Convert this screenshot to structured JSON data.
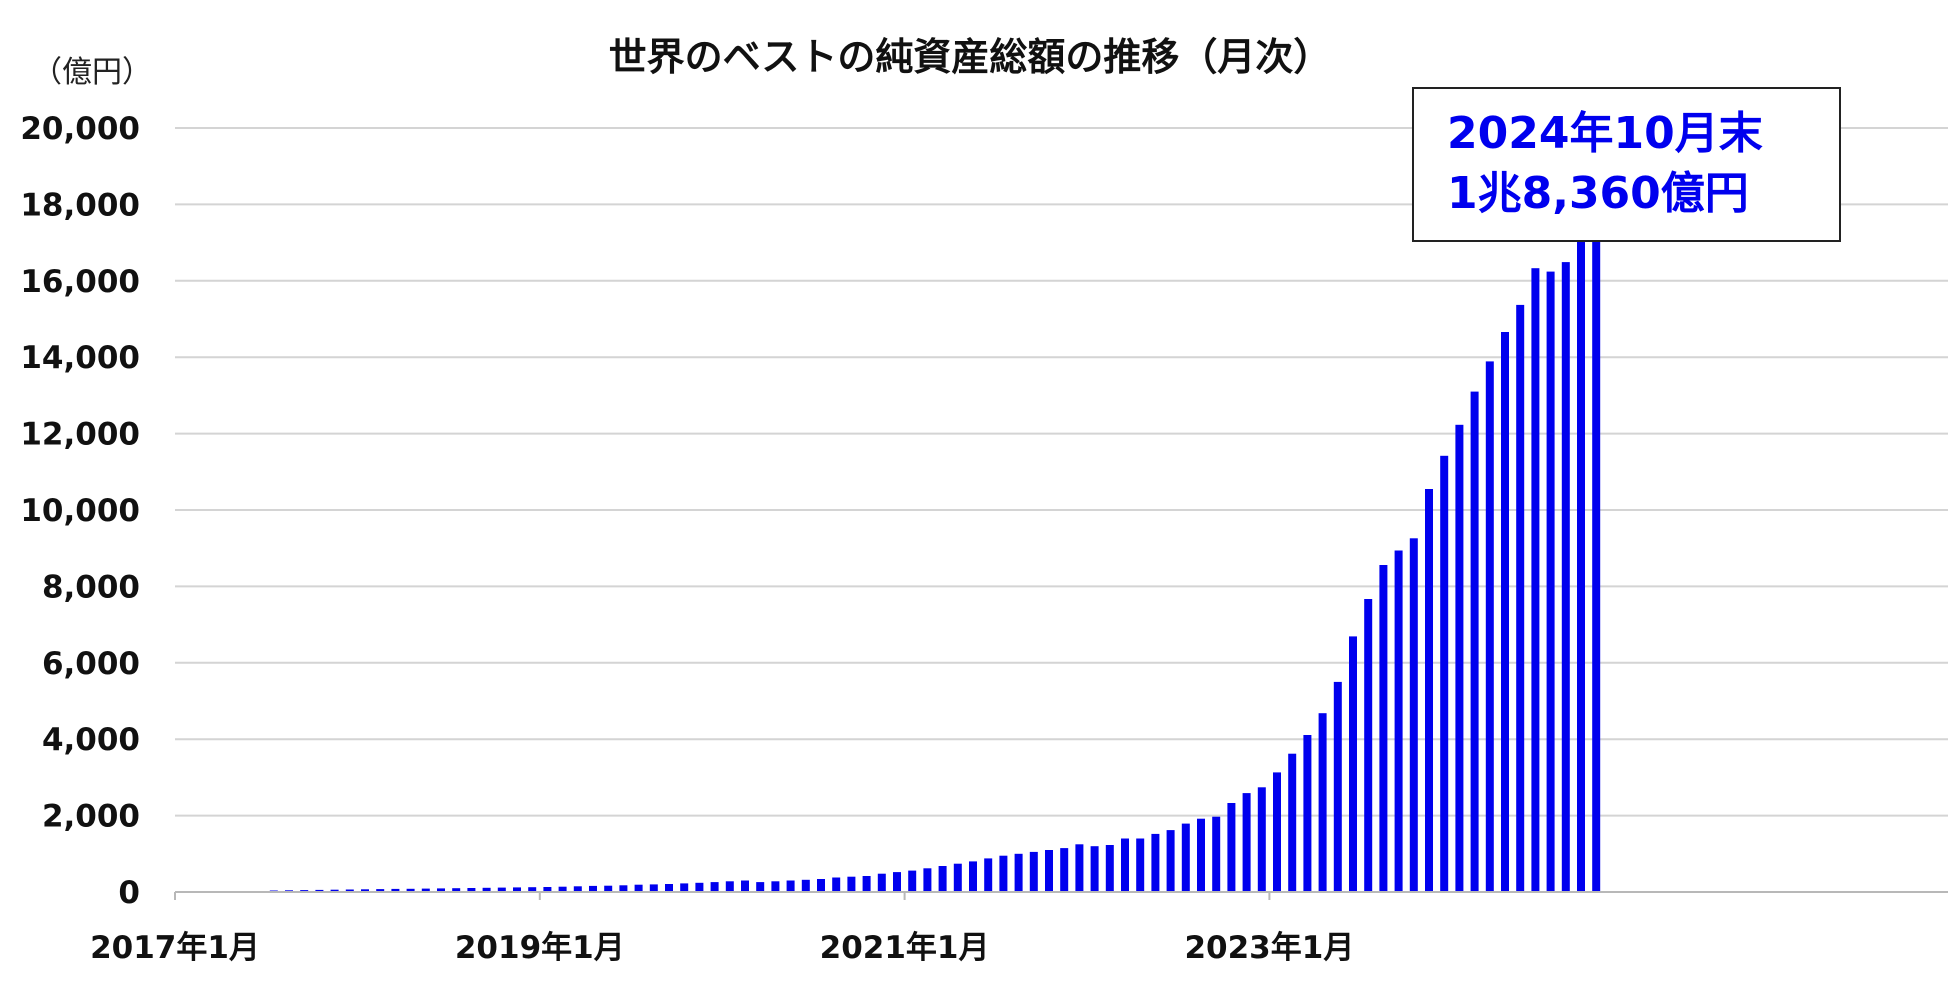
{
  "chart_data": {
    "type": "bar",
    "title": "世界のベストの純資産総額の推移（月次）",
    "ylabel": "（億円）",
    "xlabel": "",
    "ylim": [
      0,
      20000
    ],
    "yticks": [
      "0",
      "2,000",
      "4,000",
      "6,000",
      "8,000",
      "10,000",
      "12,000",
      "14,000",
      "16,000",
      "18,000",
      "20,000"
    ],
    "ytick_values": [
      0,
      2000,
      4000,
      6000,
      8000,
      10000,
      12000,
      14000,
      16000,
      18000,
      20000
    ],
    "x_start": "2017-01",
    "xticks": [
      {
        "label": "2017年1月",
        "month": "2017-01"
      },
      {
        "label": "2019年1月",
        "month": "2019-01"
      },
      {
        "label": "2021年1月",
        "month": "2021-01"
      },
      {
        "label": "2023年1月",
        "month": "2023-01"
      }
    ],
    "grid": true,
    "annotation": {
      "line1": "2024年10月末",
      "line2": "1兆8,360億円"
    },
    "colors": {
      "bar": "#0000ee",
      "annotation_text": "#0000ee"
    },
    "series": [
      {
        "values": [
          {
            "x": "2017-07",
            "y": 40
          },
          {
            "x": "2017-08",
            "y": 45
          },
          {
            "x": "2017-09",
            "y": 50
          },
          {
            "x": "2017-10",
            "y": 55
          },
          {
            "x": "2017-11",
            "y": 60
          },
          {
            "x": "2017-12",
            "y": 65
          },
          {
            "x": "2018-01",
            "y": 70
          },
          {
            "x": "2018-02",
            "y": 75
          },
          {
            "x": "2018-03",
            "y": 80
          },
          {
            "x": "2018-04",
            "y": 85
          },
          {
            "x": "2018-05",
            "y": 90
          },
          {
            "x": "2018-06",
            "y": 95
          },
          {
            "x": "2018-07",
            "y": 100
          },
          {
            "x": "2018-08",
            "y": 105
          },
          {
            "x": "2018-09",
            "y": 110
          },
          {
            "x": "2018-10",
            "y": 115
          },
          {
            "x": "2018-11",
            "y": 120
          },
          {
            "x": "2018-12",
            "y": 125
          },
          {
            "x": "2019-01",
            "y": 130
          },
          {
            "x": "2019-02",
            "y": 140
          },
          {
            "x": "2019-03",
            "y": 150
          },
          {
            "x": "2019-04",
            "y": 160
          },
          {
            "x": "2019-05",
            "y": 165
          },
          {
            "x": "2019-06",
            "y": 175
          },
          {
            "x": "2019-07",
            "y": 190
          },
          {
            "x": "2019-08",
            "y": 200
          },
          {
            "x": "2019-09",
            "y": 210
          },
          {
            "x": "2019-10",
            "y": 225
          },
          {
            "x": "2019-11",
            "y": 240
          },
          {
            "x": "2019-12",
            "y": 260
          },
          {
            "x": "2020-01",
            "y": 280
          },
          {
            "x": "2020-02",
            "y": 300
          },
          {
            "x": "2020-03",
            "y": 260
          },
          {
            "x": "2020-04",
            "y": 280
          },
          {
            "x": "2020-05",
            "y": 300
          },
          {
            "x": "2020-06",
            "y": 320
          },
          {
            "x": "2020-07",
            "y": 340
          },
          {
            "x": "2020-08",
            "y": 380
          },
          {
            "x": "2020-09",
            "y": 400
          },
          {
            "x": "2020-10",
            "y": 420
          },
          {
            "x": "2020-11",
            "y": 480
          },
          {
            "x": "2020-12",
            "y": 520
          },
          {
            "x": "2021-01",
            "y": 560
          },
          {
            "x": "2021-02",
            "y": 620
          },
          {
            "x": "2021-03",
            "y": 680
          },
          {
            "x": "2021-04",
            "y": 740
          },
          {
            "x": "2021-05",
            "y": 800
          },
          {
            "x": "2021-06",
            "y": 880
          },
          {
            "x": "2021-07",
            "y": 950
          },
          {
            "x": "2021-08",
            "y": 1000
          },
          {
            "x": "2021-09",
            "y": 1050
          },
          {
            "x": "2021-10",
            "y": 1100
          },
          {
            "x": "2021-11",
            "y": 1150
          },
          {
            "x": "2021-12",
            "y": 1250
          },
          {
            "x": "2022-01",
            "y": 1200
          },
          {
            "x": "2022-02",
            "y": 1230
          },
          {
            "x": "2022-03",
            "y": 1400
          },
          {
            "x": "2022-04",
            "y": 1400
          },
          {
            "x": "2022-05",
            "y": 1520
          },
          {
            "x": "2022-06",
            "y": 1620
          },
          {
            "x": "2022-07",
            "y": 1790
          },
          {
            "x": "2022-08",
            "y": 1920
          },
          {
            "x": "2022-09",
            "y": 1970
          },
          {
            "x": "2022-10",
            "y": 2330
          },
          {
            "x": "2022-11",
            "y": 2590
          },
          {
            "x": "2022-12",
            "y": 2740
          },
          {
            "x": "2023-01",
            "y": 3130
          },
          {
            "x": "2023-02",
            "y": 3620
          },
          {
            "x": "2023-03",
            "y": 4110
          },
          {
            "x": "2023-04",
            "y": 4680
          },
          {
            "x": "2023-05",
            "y": 5500
          },
          {
            "x": "2023-06",
            "y": 6690
          },
          {
            "x": "2023-07",
            "y": 7670
          },
          {
            "x": "2023-08",
            "y": 8560
          },
          {
            "x": "2023-09",
            "y": 8940
          },
          {
            "x": "2023-10",
            "y": 9260
          },
          {
            "x": "2023-11",
            "y": 10550
          },
          {
            "x": "2023-12",
            "y": 11420
          },
          {
            "x": "2024-01",
            "y": 12230
          },
          {
            "x": "2024-02",
            "y": 13100
          },
          {
            "x": "2024-03",
            "y": 13890
          },
          {
            "x": "2024-04",
            "y": 14660
          },
          {
            "x": "2024-05",
            "y": 15370
          },
          {
            "x": "2024-06",
            "y": 16330
          },
          {
            "x": "2024-07",
            "y": 16240
          },
          {
            "x": "2024-08",
            "y": 16490
          },
          {
            "x": "2024-09",
            "y": 17140
          },
          {
            "x": "2024-10",
            "y": 18360
          }
        ]
      }
    ]
  }
}
